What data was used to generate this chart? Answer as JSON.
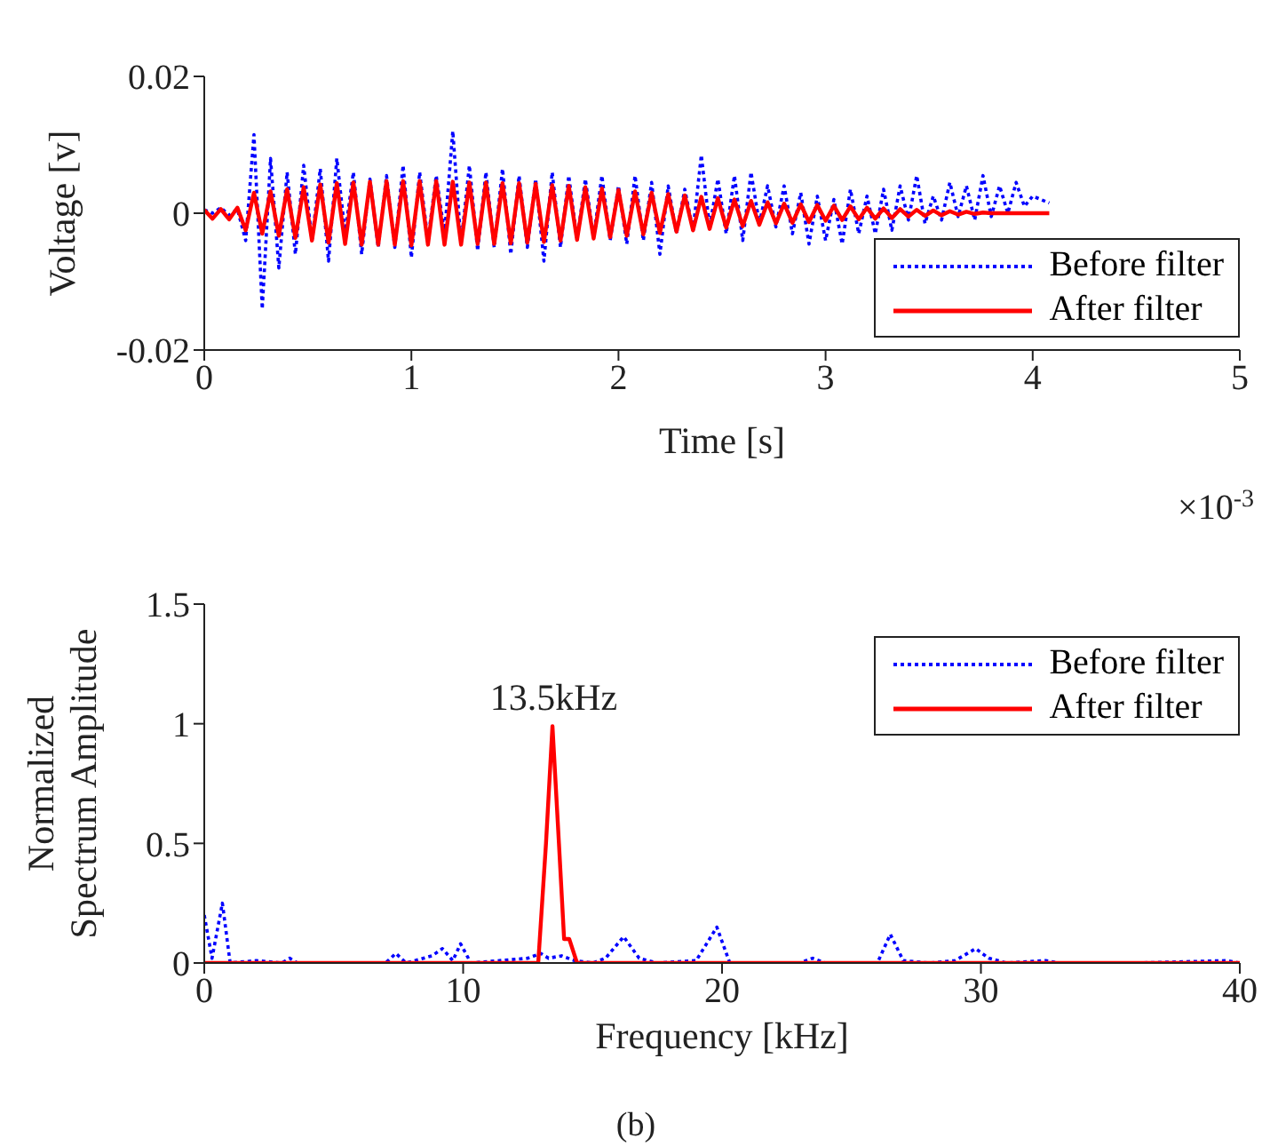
{
  "chart_data": [
    {
      "type": "line",
      "xlabel": "Time [s]",
      "ylabel": "Voltage [v]",
      "xlim": [
        0,
        5
      ],
      "xticks": [
        0,
        1,
        2,
        3,
        4,
        5
      ],
      "ylim": [
        -0.02,
        0.02
      ],
      "yticks": [
        -0.02,
        0,
        0.02
      ],
      "grid": false,
      "legend": "bottom right",
      "annotations": [
        "×10$^{-3}$"
      ],
      "x": [
        0,
        0.04,
        0.08,
        0.12,
        0.16,
        0.2,
        0.24,
        0.28,
        0.32,
        0.36,
        0.4,
        0.44,
        0.48,
        0.52,
        0.56,
        0.6,
        0.64,
        0.68,
        0.72,
        0.76,
        0.8,
        0.84,
        0.88,
        0.92,
        0.96,
        1,
        1.04,
        1.08,
        1.12,
        1.16,
        1.2,
        1.24,
        1.28,
        1.32,
        1.36,
        1.4,
        1.44,
        1.48,
        1.52,
        1.56,
        1.6,
        1.64,
        1.68,
        1.72,
        1.76,
        1.8,
        1.84,
        1.88,
        1.92,
        1.96,
        2,
        2.04,
        2.08,
        2.12,
        2.16,
        2.2,
        2.24,
        2.28,
        2.32,
        2.36,
        2.4,
        2.44,
        2.48,
        2.52,
        2.56,
        2.6,
        2.64,
        2.68,
        2.72,
        2.76,
        2.8,
        2.84,
        2.88,
        2.92,
        2.96,
        3,
        3.04,
        3.08,
        3.12,
        3.16,
        3.2,
        3.24,
        3.28,
        3.32,
        3.36,
        3.4,
        3.44,
        3.48,
        3.52,
        3.56,
        3.6,
        3.64,
        3.68,
        3.72,
        3.76,
        3.8,
        3.84,
        3.88,
        3.92,
        3.96,
        4,
        4.04,
        4.08
      ],
      "series": [
        {
          "name": "Before filter",
          "color": "#0000ff",
          "line_style": "dotted",
          "values": [
            0.0005,
            0,
            0.0008,
            -0.0003,
            0.0006,
            -0.004,
            0.0115,
            -0.014,
            0.008,
            -0.008,
            0.006,
            -0.006,
            0.007,
            -0.004,
            0.0065,
            -0.007,
            0.008,
            -0.003,
            0.006,
            -0.006,
            0.005,
            -0.005,
            0.0055,
            -0.005,
            0.007,
            -0.0065,
            0.006,
            -0.004,
            0.0055,
            -0.003,
            0.012,
            -0.0045,
            0.007,
            -0.0055,
            0.006,
            -0.005,
            0.0065,
            -0.006,
            0.0055,
            -0.005,
            0.005,
            -0.007,
            0.006,
            -0.005,
            0.0055,
            -0.004,
            0.005,
            -0.0035,
            0.0055,
            -0.004,
            0.004,
            -0.0045,
            0.0055,
            -0.004,
            0.0045,
            -0.006,
            0.004,
            -0.003,
            0.0035,
            -0.0025,
            0.0085,
            -0.002,
            0.005,
            -0.003,
            0.0055,
            -0.004,
            0.006,
            -0.0015,
            0.004,
            -0.002,
            0.004,
            -0.003,
            0.003,
            -0.0045,
            0.0025,
            -0.004,
            0.002,
            -0.0045,
            0.0035,
            -0.003,
            0.0025,
            -0.003,
            0.0035,
            -0.0025,
            0.004,
            -0.001,
            0.0055,
            -0.0015,
            0.0025,
            -0.001,
            0.0045,
            -0.0005,
            0.004,
            -0.001,
            0.0055,
            -0.0005,
            0.004,
            0,
            0.0045,
            0.001,
            0.0025,
            0.002,
            0.0015
          ]
        },
        {
          "name": "After filter",
          "color": "#ff0000",
          "line_style": "solid",
          "values": [
            0.0005,
            -0.0008,
            0.0006,
            -0.0009,
            0.0008,
            -0.0025,
            0.003,
            -0.003,
            0.0032,
            -0.0033,
            0.0035,
            -0.0036,
            0.0038,
            -0.004,
            0.0042,
            -0.0043,
            0.0044,
            -0.0045,
            0.0045,
            -0.0046,
            0.0046,
            -0.0046,
            0.0047,
            -0.0046,
            0.0047,
            -0.0047,
            0.0047,
            -0.0046,
            0.0047,
            -0.0046,
            0.0046,
            -0.0046,
            0.0045,
            -0.0045,
            0.0045,
            -0.0045,
            0.0044,
            -0.0044,
            0.0044,
            -0.0043,
            0.0043,
            -0.0042,
            0.0041,
            -0.004,
            0.004,
            -0.0039,
            0.0038,
            -0.0037,
            0.0036,
            -0.0035,
            0.0034,
            -0.0033,
            0.0032,
            -0.0031,
            0.003,
            -0.0029,
            0.0028,
            -0.0027,
            0.0026,
            -0.0025,
            0.0024,
            -0.0023,
            0.0022,
            -0.0021,
            0.002,
            -0.0019,
            0.0018,
            -0.0017,
            0.0016,
            -0.0015,
            0.0014,
            -0.0014,
            0.0013,
            -0.0013,
            0.0012,
            -0.0011,
            0.0011,
            -0.001,
            0.001,
            -0.0009,
            0.0008,
            -0.0008,
            0.0007,
            -0.0007,
            0.0006,
            -0.0005,
            0.0005,
            -0.0004,
            0.0004,
            -0.0003,
            0.0003,
            -0.0002,
            0.0002,
            -0.0001,
            0.0001,
            0,
            0,
            0,
            0,
            0,
            0,
            0,
            0
          ]
        }
      ]
    },
    {
      "type": "line",
      "xlabel": "Frequency [kHz]",
      "ylabel": "Normalized\nSpectrum Amplitude",
      "xlim": [
        0,
        40
      ],
      "xticks": [
        0,
        10,
        20,
        30,
        40
      ],
      "ylim": [
        0,
        1.5
      ],
      "yticks": [
        0,
        0.5,
        1,
        1.5
      ],
      "grid": false,
      "legend": "top right",
      "annotations": [
        {
          "text": "13.5kHz",
          "x": 13.5,
          "y": 1
        },
        "(b)"
      ],
      "series": [
        {
          "name": "Before filter",
          "color": "#0000ff",
          "line_style": "dotted",
          "x": [
            0,
            0.3,
            0.7,
            1,
            2,
            3,
            3.3,
            3.6,
            7,
            7.4,
            7.8,
            8.8,
            9.2,
            9.6,
            9.9,
            10.3,
            12.5,
            13,
            13.3,
            13.8,
            14.3,
            15,
            15.5,
            16.2,
            16.8,
            17.5,
            19,
            19.8,
            20.3,
            23,
            23.5,
            24,
            26,
            26.5,
            27,
            28,
            29,
            29.8,
            30.3,
            31,
            32.5,
            33,
            36,
            39.5,
            40
          ],
          "values": [
            0.2,
            0.02,
            0.25,
            0,
            0.01,
            0,
            0.02,
            0,
            0,
            0.04,
            0,
            0.03,
            0.06,
            0.01,
            0.08,
            0,
            0.02,
            0.04,
            0.02,
            0.03,
            0.01,
            0,
            0.02,
            0.11,
            0.02,
            0,
            0.01,
            0.15,
            0,
            0,
            0.02,
            0,
            0,
            0.12,
            0.01,
            0,
            0.01,
            0.06,
            0.02,
            0,
            0.01,
            0,
            0,
            0.01,
            0
          ]
        },
        {
          "name": "After filter",
          "color": "#ff0000",
          "line_style": "solid",
          "x": [
            0,
            12.9,
            13.2,
            13.45,
            13.7,
            13.9,
            14.1,
            14.4,
            40
          ],
          "values": [
            0,
            0,
            0.5,
            0.99,
            0.5,
            0.1,
            0.1,
            0,
            0
          ]
        }
      ]
    }
  ]
}
